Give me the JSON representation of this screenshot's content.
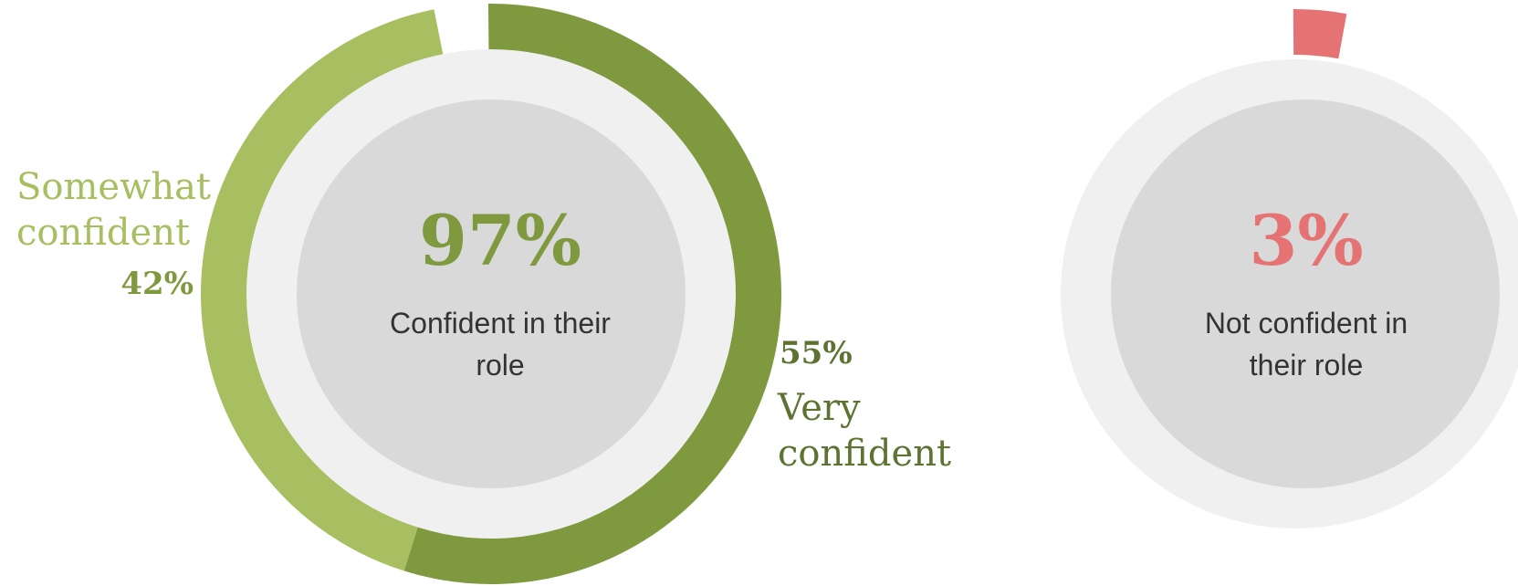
{
  "colors": {
    "very": "#7f993f",
    "somewhat": "#a7bf60",
    "not": "#e57373",
    "track": "#f0f0f0",
    "inner": "#d9d9d9",
    "label_dark": "#5e7332",
    "text": "#333333"
  },
  "chart_data": [
    {
      "type": "pie",
      "center_value": "97%",
      "center_label": "Confident in their role",
      "slices": [
        {
          "name": "Very confident",
          "value": 55,
          "value_label": "55%"
        },
        {
          "name": "Somewhat confident",
          "value": 42,
          "value_label": "42%"
        }
      ]
    },
    {
      "type": "pie",
      "center_value": "3%",
      "center_label": "Not confident in their role",
      "slices": [
        {
          "name": "",
          "value": 3,
          "value_label": ""
        }
      ]
    }
  ],
  "labels": {
    "very_pct": "55%",
    "very_line1": "Very",
    "very_line2": "confident",
    "somewhat_pct": "42%",
    "somewhat_line1": "Somewhat",
    "somewhat_line2": "confident",
    "left_center_value": "97%",
    "left_center_line1": "Confident in their",
    "left_center_line2": "role",
    "right_center_value": "3%",
    "right_center_line1": "Not confident in",
    "right_center_line2": "their role"
  }
}
